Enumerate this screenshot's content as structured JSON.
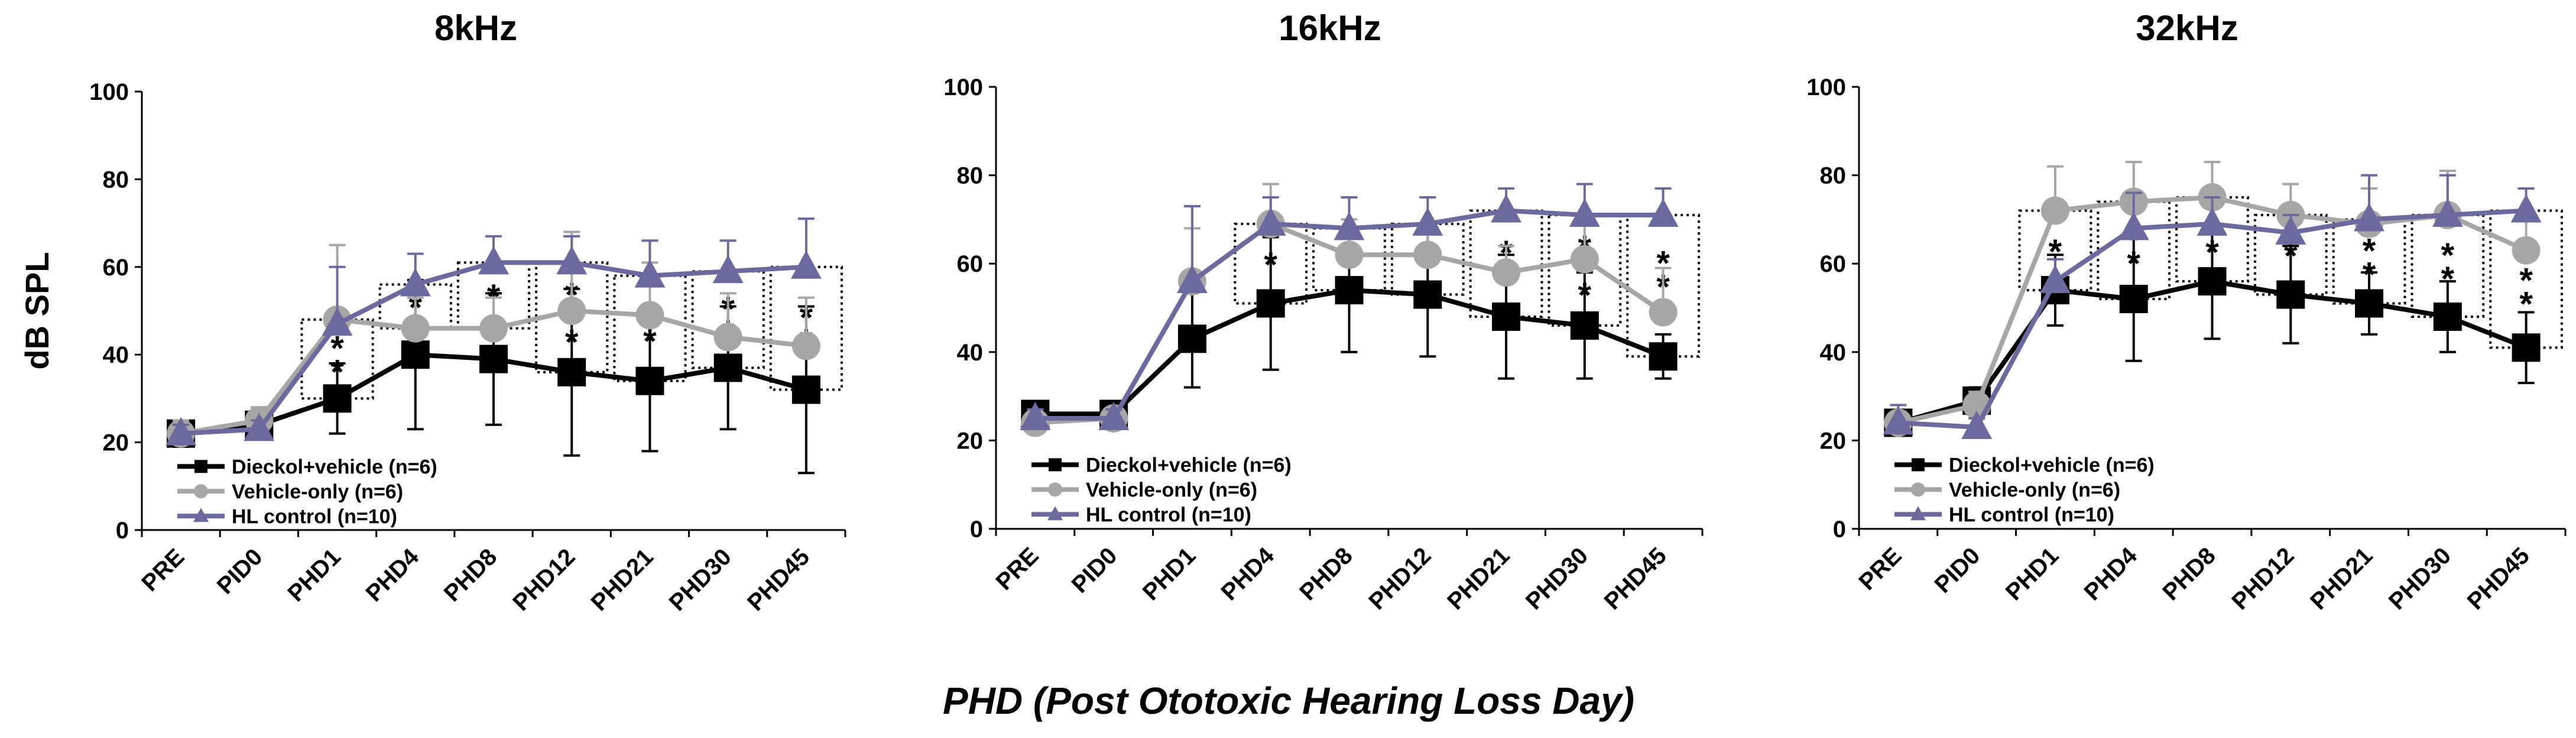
{
  "figure": {
    "xlabel": "PHD (Post Ototoxic Hearing Loss Day)"
  },
  "legend": [
    {
      "name": "Dieckol+vehicle (n=6)",
      "color": "#000000",
      "marker": "square"
    },
    {
      "name": "Vehicle-only (n=6)",
      "color": "#a6a6a6",
      "marker": "circle"
    },
    {
      "name": "HL control (n=10)",
      "color": "#6a6a9e",
      "marker": "triangle"
    }
  ],
  "chart_data": [
    {
      "type": "line",
      "title": "8kHz",
      "xlabel": "",
      "ylabel": "dB SPL",
      "ylim": [
        0,
        100
      ],
      "yticks": [
        "0",
        "20",
        "40",
        "60",
        "80",
        "100"
      ],
      "categories": [
        "PRE",
        "PID0",
        "PHD1",
        "PHD4",
        "PHD8",
        "PHD12",
        "PHD21",
        "PHD30",
        "PHD45"
      ],
      "series": [
        {
          "name": "Dieckol+vehicle (n=6)",
          "color": "#000000",
          "marker": "square",
          "values": [
            22,
            24,
            30,
            40,
            39,
            36,
            34,
            37,
            32
          ],
          "errors": [
            3,
            3,
            8,
            17,
            15,
            19,
            16,
            14,
            19
          ]
        },
        {
          "name": "Vehicle-only (n=6)",
          "color": "#a6a6a6",
          "marker": "circle",
          "values": [
            22,
            25,
            48,
            46,
            46,
            50,
            49,
            44,
            42
          ],
          "errors": [
            3,
            3,
            17,
            7,
            7,
            18,
            12,
            10,
            11
          ]
        },
        {
          "name": "HL control (n=10)",
          "color": "#6a6a9e",
          "marker": "triangle",
          "values": [
            22,
            23,
            47,
            56,
            61,
            61,
            58,
            59,
            60
          ],
          "errors": [
            2,
            2,
            13,
            7,
            6,
            6,
            8,
            7,
            11
          ]
        }
      ],
      "significance": [
        {
          "between": [
            2,
            3
          ],
          "span": [
            30,
            48
          ],
          "marks": [
            "*",
            "*"
          ]
        },
        {
          "between": [
            3,
            4
          ],
          "span": [
            46,
            56
          ],
          "marks": [
            "*"
          ]
        },
        {
          "between": [
            4,
            5
          ],
          "span": [
            46,
            61
          ],
          "marks": [
            "*"
          ]
        },
        {
          "between": [
            5,
            6
          ],
          "span": [
            36,
            61
          ],
          "marks": [
            "*",
            "*",
            "*"
          ]
        },
        {
          "between": [
            6,
            7
          ],
          "span": [
            34,
            58
          ],
          "marks": [
            "*",
            "*"
          ]
        },
        {
          "between": [
            7,
            8
          ],
          "span": [
            37,
            59
          ],
          "marks": [
            "*",
            "*"
          ]
        },
        {
          "between": [
            8,
            9
          ],
          "span": [
            32,
            60
          ],
          "marks": [
            "*",
            "*"
          ]
        }
      ]
    },
    {
      "type": "line",
      "title": "16kHz",
      "xlabel": "",
      "ylabel": "",
      "ylim": [
        0,
        100
      ],
      "yticks": [
        "0",
        "20",
        "40",
        "60",
        "80",
        "100"
      ],
      "categories": [
        "PRE",
        "PID0",
        "PHD1",
        "PHD4",
        "PHD8",
        "PHD12",
        "PHD21",
        "PHD30",
        "PHD45"
      ],
      "series": [
        {
          "name": "Dieckol+vehicle (n=6)",
          "color": "#000000",
          "marker": "square",
          "values": [
            26,
            26,
            43,
            51,
            54,
            53,
            48,
            46,
            39
          ],
          "errors": [
            2,
            2,
            11,
            15,
            14,
            14,
            14,
            12,
            5
          ]
        },
        {
          "name": "Vehicle-only (n=6)",
          "color": "#a6a6a6",
          "marker": "circle",
          "values": [
            24,
            25,
            56,
            69,
            62,
            62,
            58,
            61,
            49
          ],
          "errors": [
            2,
            2,
            12,
            9,
            8,
            7,
            6,
            9,
            10
          ]
        },
        {
          "name": "HL control (n=10)",
          "color": "#6a6a9e",
          "marker": "triangle",
          "values": [
            25,
            25,
            56,
            69,
            68,
            69,
            72,
            71,
            71
          ],
          "errors": [
            2,
            2,
            17,
            6,
            7,
            6,
            5,
            7,
            6
          ]
        }
      ],
      "significance": [
        {
          "between": [
            3,
            4
          ],
          "span": [
            51,
            69
          ],
          "marks": [
            "*"
          ]
        },
        {
          "between": [
            4,
            5
          ],
          "span": [
            54,
            68
          ],
          "marks": [
            "*"
          ]
        },
        {
          "between": [
            5,
            6
          ],
          "span": [
            53,
            69
          ],
          "marks": [
            "*"
          ]
        },
        {
          "between": [
            6,
            7
          ],
          "span": [
            48,
            72
          ],
          "marks": [
            "*",
            "*"
          ]
        },
        {
          "between": [
            7,
            8
          ],
          "span": [
            46,
            71
          ],
          "marks": [
            "*",
            "*",
            "*"
          ]
        },
        {
          "between": [
            8,
            9
          ],
          "span": [
            39,
            71
          ],
          "marks": [
            "*",
            "*",
            "*"
          ]
        }
      ]
    },
    {
      "type": "line",
      "title": "32kHz",
      "xlabel": "",
      "ylabel": "",
      "ylim": [
        0,
        100
      ],
      "yticks": [
        "0",
        "20",
        "40",
        "60",
        "80",
        "100"
      ],
      "categories": [
        "PRE",
        "PID0",
        "PHD1",
        "PHD4",
        "PHD8",
        "PHD12",
        "PHD21",
        "PHD30",
        "PHD45"
      ],
      "series": [
        {
          "name": "Dieckol+vehicle (n=6)",
          "color": "#000000",
          "marker": "square",
          "values": [
            24,
            29,
            54,
            52,
            56,
            53,
            51,
            48,
            41
          ],
          "errors": [
            2,
            3,
            8,
            14,
            13,
            11,
            7,
            8,
            8
          ]
        },
        {
          "name": "Vehicle-only (n=6)",
          "color": "#a6a6a6",
          "marker": "circle",
          "values": [
            24,
            28,
            72,
            74,
            75,
            71,
            69,
            71,
            63
          ],
          "errors": [
            2,
            3,
            10,
            9,
            8,
            7,
            8,
            10,
            8
          ]
        },
        {
          "name": "HL control (n=10)",
          "color": "#6a6a9e",
          "marker": "triangle",
          "values": [
            24,
            23,
            56,
            68,
            69,
            67,
            70,
            71,
            72
          ],
          "errors": [
            4,
            2,
            5,
            8,
            6,
            4,
            10,
            9,
            5
          ]
        }
      ],
      "significance": [
        {
          "between": [
            2,
            3
          ],
          "span": [
            54,
            72
          ],
          "marks": [
            "*"
          ]
        },
        {
          "between": [
            3,
            4
          ],
          "span": [
            52,
            74
          ],
          "marks": [
            "*",
            "*"
          ]
        },
        {
          "between": [
            4,
            5
          ],
          "span": [
            56,
            75
          ],
          "marks": [
            "*",
            "*"
          ]
        },
        {
          "between": [
            5,
            6
          ],
          "span": [
            53,
            71
          ],
          "marks": [
            "*"
          ]
        },
        {
          "between": [
            6,
            7
          ],
          "span": [
            51,
            70
          ],
          "marks": [
            "*",
            "*"
          ]
        },
        {
          "between": [
            7,
            8
          ],
          "span": [
            48,
            71
          ],
          "marks": [
            "*",
            "*"
          ]
        },
        {
          "between": [
            8,
            9
          ],
          "span": [
            41,
            72
          ],
          "marks": [
            "*",
            "*",
            "*"
          ]
        }
      ]
    }
  ]
}
